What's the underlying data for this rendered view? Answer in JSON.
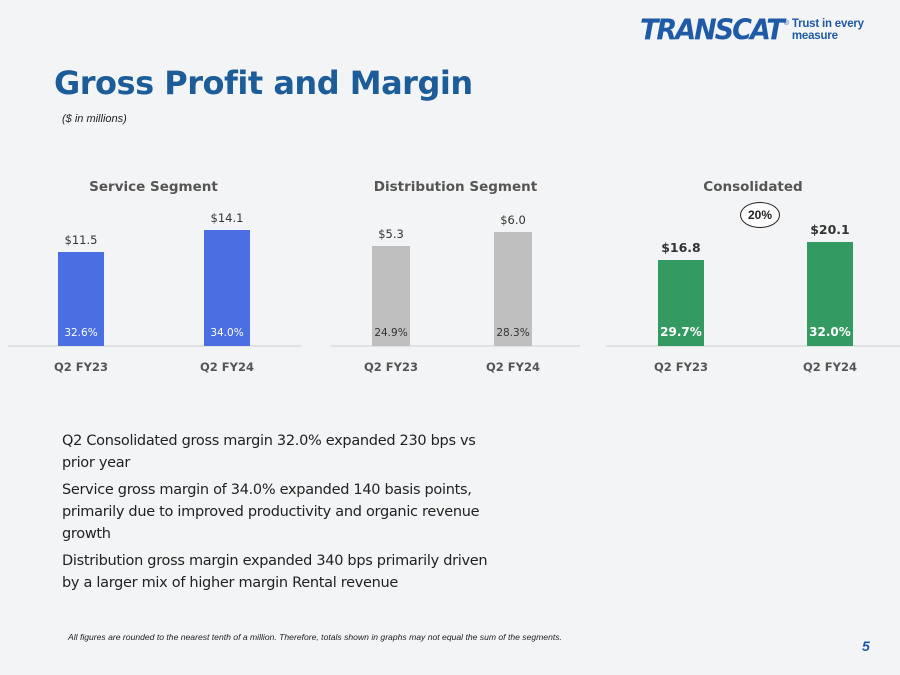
{
  "logo": {
    "word": "TRANSCAT",
    "registered": "®",
    "tagline": "Trust in every measure"
  },
  "title": "Gross Profit and Margin",
  "subtitle": "($ in millions)",
  "colors": {
    "title": "#1c5d99",
    "service": "#4a6fe3",
    "distribution": "#bfbfbf",
    "consolidated": "#339a62"
  },
  "chart_data": [
    {
      "type": "bar",
      "title": "Service Segment",
      "categories": [
        "Q2 FY23",
        "Q2 FY24"
      ],
      "values": [
        11.5,
        14.1
      ],
      "value_labels": [
        "$11.5",
        "$14.1"
      ],
      "margins": [
        "32.6%",
        "34.0%"
      ],
      "color": "#4a6fe3",
      "ylim": [
        0,
        20
      ]
    },
    {
      "type": "bar",
      "title": "Distribution Segment",
      "categories": [
        "Q2 FY23",
        "Q2 FY24"
      ],
      "values": [
        5.3,
        6.0
      ],
      "value_labels": [
        "$5.3",
        "$6.0"
      ],
      "margins": [
        "24.9%",
        "28.3%"
      ],
      "color": "#bfbfbf",
      "ylim": [
        0,
        7.8
      ]
    },
    {
      "type": "bar",
      "title": "Consolidated",
      "categories": [
        "Q2 FY23",
        "Q2 FY24"
      ],
      "values": [
        16.8,
        20.1
      ],
      "value_labels": [
        "$16.8",
        "$20.1"
      ],
      "margins": [
        "29.7%",
        "32.0%"
      ],
      "color": "#339a62",
      "ylim": [
        0,
        36
      ],
      "annotation": "20%"
    }
  ],
  "bullets": [
    "Q2 Consolidated gross margin 32.0% expanded 230 bps vs prior year",
    "Service gross margin of 34.0% expanded 140 basis points, primarily due to improved productivity and organic revenue growth",
    "Distribution gross margin expanded 340 bps primarily driven by a larger mix of higher margin Rental revenue"
  ],
  "footnote": "All figures are rounded to the nearest tenth of a million. Therefore, totals shown in graphs may not equal the sum of the segments.",
  "page_number": "5"
}
